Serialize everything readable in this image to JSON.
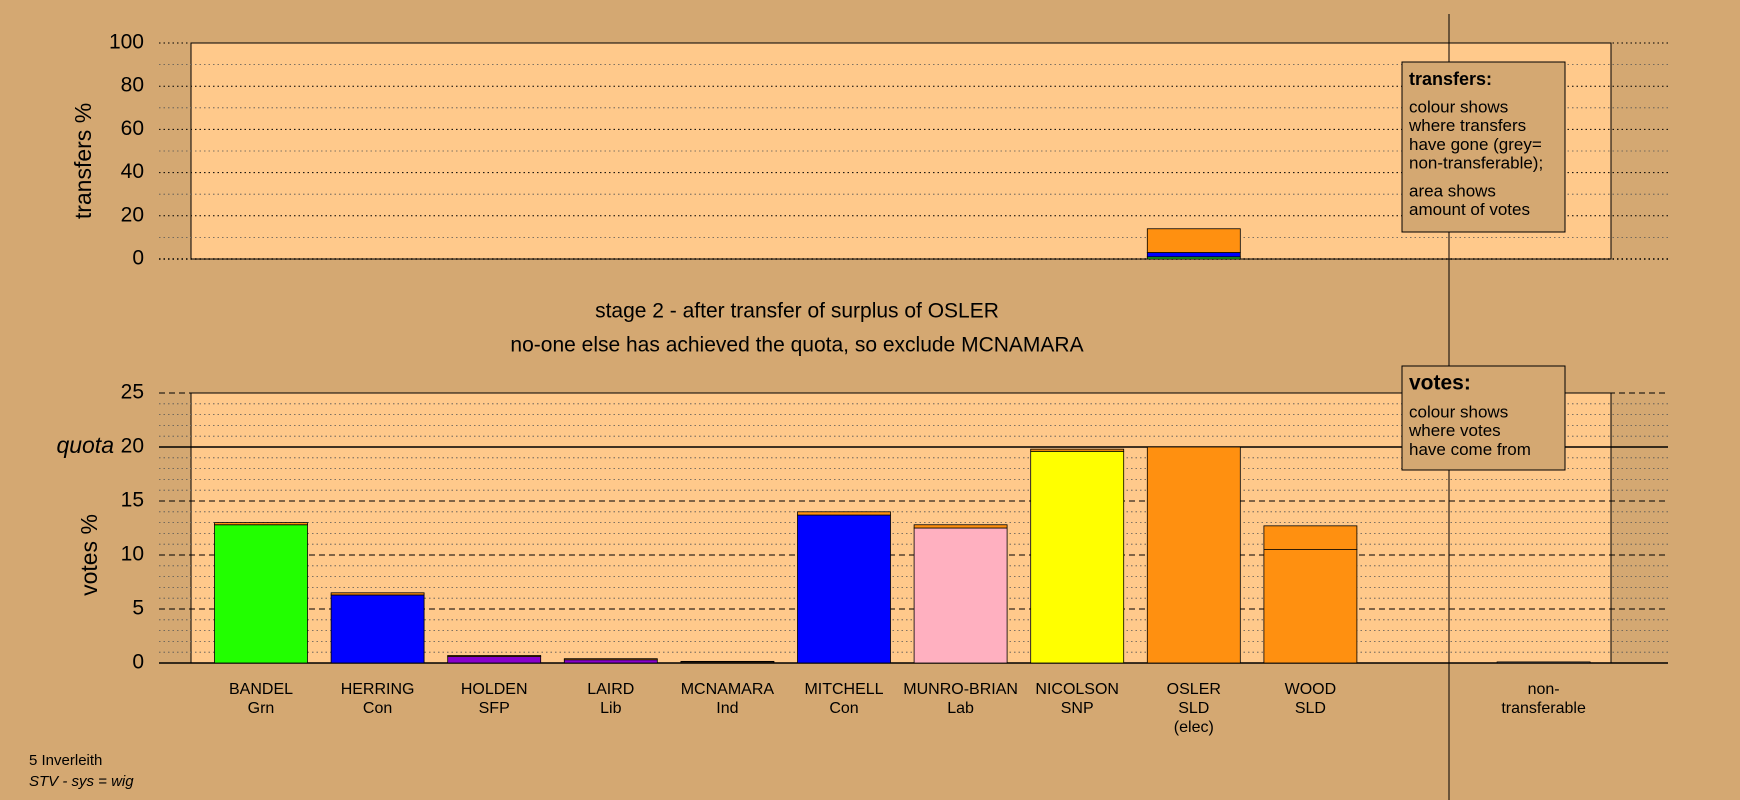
{
  "chart_data": [
    {
      "type": "bar",
      "stacked": true,
      "y_label": "transfers %",
      "ylim": [
        0,
        100
      ],
      "yticks": [
        0,
        20,
        40,
        60,
        80,
        100
      ],
      "minor_yticks": [
        10,
        30,
        50,
        70,
        90
      ],
      "series": [
        {
          "color": "#22cc22",
          "values": [
            null,
            null,
            null,
            null,
            null,
            null,
            null,
            null,
            1,
            null,
            null,
            null
          ]
        },
        {
          "color": "#0000ff",
          "values": [
            null,
            null,
            null,
            null,
            null,
            null,
            null,
            null,
            2,
            null,
            null,
            null
          ]
        },
        {
          "color": "#ff9010",
          "values": [
            null,
            null,
            null,
            null,
            null,
            null,
            null,
            null,
            11,
            null,
            null,
            null
          ]
        }
      ],
      "legend": {
        "title": "transfers:",
        "lines": [
          "colour shows",
          "where transfers",
          "have gone (grey=",
          "non-transferable);",
          "area shows",
          "amount of votes"
        ]
      }
    },
    {
      "type": "bar",
      "stacked": true,
      "y_label": "votes %",
      "title": "stage 2 - after transfer of surplus of OSLER",
      "subtitle": "no-one else has achieved the quota, so exclude MCNAMARA",
      "ylim": [
        0,
        25
      ],
      "yticks": [
        0,
        5,
        10,
        15,
        20,
        25
      ],
      "minor_yticks": [
        1,
        2,
        3,
        4,
        6,
        7,
        8,
        9,
        11,
        12,
        13,
        14,
        16,
        17,
        18,
        19,
        21,
        22,
        23,
        24
      ],
      "quota": {
        "label": "quota",
        "value": 20
      },
      "categories": [
        [
          "BANDEL",
          "Grn"
        ],
        [
          "HERRING",
          "Con"
        ],
        [
          "HOLDEN",
          "SFP"
        ],
        [
          "LAIRD",
          "Lib"
        ],
        [
          "MCNAMARA",
          "Ind"
        ],
        [
          "MITCHELL",
          "Con"
        ],
        [
          "MUNRO-BRIAN",
          "Lab"
        ],
        [
          "NICOLSON",
          "SNP"
        ],
        [
          "OSLER",
          "SLD",
          "(elec)"
        ],
        [
          "WOOD",
          "SLD"
        ],
        null,
        [
          "non-",
          "transferable"
        ]
      ],
      "series": [
        {
          "colors": [
            "#22ff00",
            "#0000ff",
            "#8800cc",
            "#8800cc",
            "#996633",
            "#0000ff",
            "#ffb0c0",
            "#ffff00",
            "#ff9010",
            "#ff9010",
            null,
            "#777777"
          ],
          "values": [
            12.8,
            6.3,
            0.6,
            0.3,
            0.1,
            13.7,
            12.5,
            19.6,
            20,
            10.5,
            null,
            0.1
          ]
        },
        {
          "color": "#ff9010",
          "values": [
            0.2,
            0.2,
            0.1,
            0.1,
            0.05,
            0.3,
            0.3,
            0.2,
            null,
            2.2,
            null,
            null
          ]
        }
      ],
      "legend": {
        "title": "votes:",
        "lines": [
          "colour shows",
          "where votes",
          "have come from"
        ]
      }
    }
  ],
  "footer": [
    "5 Inverleith",
    "STV - sys = wig"
  ]
}
